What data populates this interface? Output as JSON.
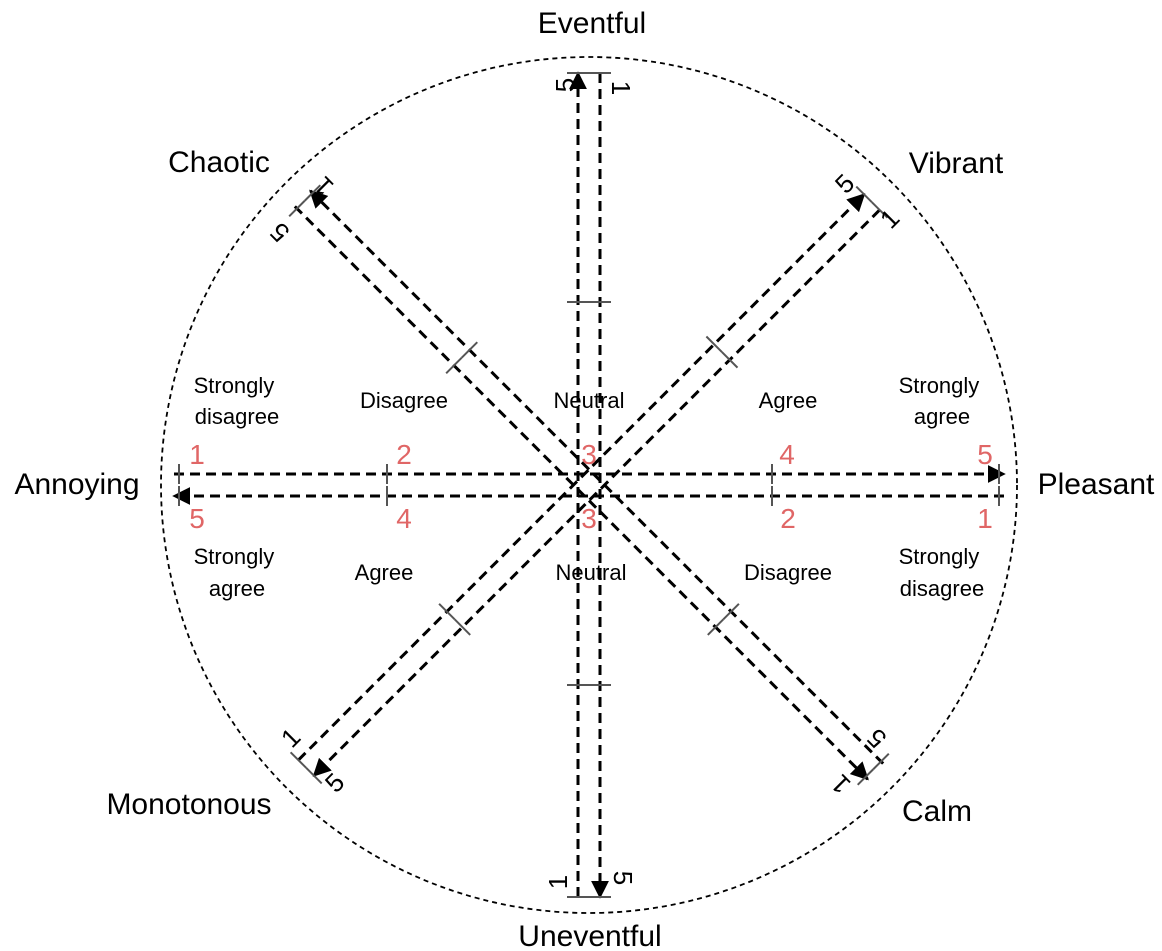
{
  "attributes": {
    "eventful": "Eventful",
    "uneventful": "Uneventful",
    "pleasant": "Pleasant",
    "annoying": "Annoying",
    "vibrant": "Vibrant",
    "calm": "Calm",
    "chaotic": "Chaotic",
    "monotonous": "Monotonous"
  },
  "upper_zone": {
    "strongly_disagree": [
      "Strongly",
      "disagree"
    ],
    "disagree": "Disagree",
    "neutral": "Neutral",
    "agree": "Agree",
    "strongly_agree": [
      "Strongly",
      "agree"
    ]
  },
  "lower_zone": {
    "strongly_agree": [
      "Strongly",
      "agree"
    ],
    "agree": "Agree",
    "neutral": "Neutral",
    "disagree": "Disagree",
    "strongly_disagree": [
      "Strongly",
      "disagree"
    ]
  },
  "upper_scale": [
    "1",
    "2",
    "3",
    "4",
    "5"
  ],
  "lower_scale": [
    "5",
    "4",
    "3",
    "2",
    "1"
  ],
  "axis_end_numbers": {
    "one": "1",
    "five": "5"
  },
  "colors": {
    "scale_numbers": "#e06666",
    "lines": "#000000",
    "ticks": "#555555"
  }
}
